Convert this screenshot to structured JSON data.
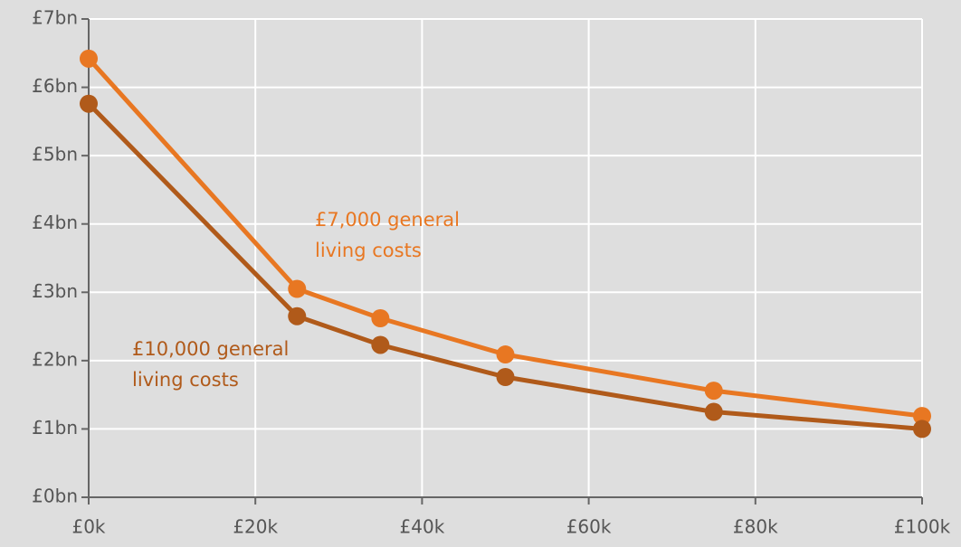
{
  "chart_data": {
    "type": "line",
    "x": [
      0,
      25,
      35,
      50,
      75,
      100
    ],
    "series": [
      {
        "name": "£7,000 general living costs",
        "color": "#e87722",
        "values": [
          6.42,
          3.05,
          2.62,
          2.09,
          1.56,
          1.19
        ]
      },
      {
        "name": "£10,000 general living costs",
        "color": "#b05a1a",
        "values": [
          5.76,
          2.65,
          2.23,
          1.76,
          1.25,
          1.0
        ]
      }
    ],
    "xlim": [
      0,
      100
    ],
    "xticks": [
      {
        "value": 0,
        "label": "£0k"
      },
      {
        "value": 20,
        "label": "£20k"
      },
      {
        "value": 40,
        "label": "£40k"
      },
      {
        "value": 60,
        "label": "£60k"
      },
      {
        "value": 80,
        "label": "£80k"
      },
      {
        "value": 100,
        "label": "£100k"
      }
    ],
    "ylim": [
      0,
      7
    ],
    "yticks": [
      {
        "value": 0,
        "label": "£0bn"
      },
      {
        "value": 1,
        "label": "£1bn"
      },
      {
        "value": 2,
        "label": "£2bn"
      },
      {
        "value": 3,
        "label": "£3bn"
      },
      {
        "value": 4,
        "label": "£4bn"
      },
      {
        "value": 5,
        "label": "£5bn"
      },
      {
        "value": 6,
        "label": "£6bn"
      },
      {
        "value": 7,
        "label": "£7bn"
      }
    ],
    "grid": true
  }
}
